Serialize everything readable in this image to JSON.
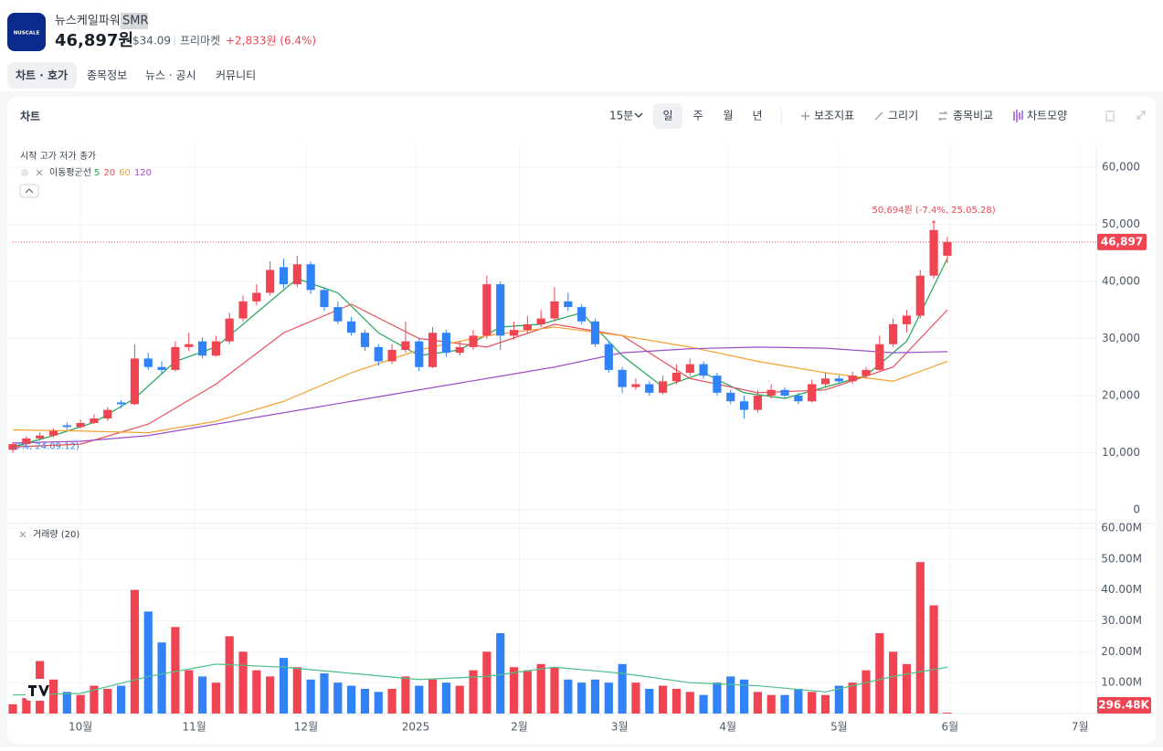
{
  "header": {
    "logo": "NUSCALE",
    "company": "뉴스케일파워",
    "ticker": "SMR",
    "price": "46,897원",
    "usd": "$34.09",
    "session": "프리마켓",
    "change": "+2,833원 (6.4%)"
  },
  "tabs": [
    "차트 · 호가",
    "종목정보",
    "뉴스 · 공시",
    "커뮤니티"
  ],
  "toolbar": {
    "title": "차트",
    "interval": "15분",
    "periods": [
      "일",
      "주",
      "월",
      "년"
    ],
    "tools": [
      "보조지표",
      "그리기",
      "종목비교",
      "차트모양"
    ]
  },
  "chart_data": {
    "type": "candlestick",
    "ohlc_legend": "시작 고가 저가 종가",
    "ma_label": "이동평균선",
    "up_color": "#f04452",
    "down_color": "#3182f6",
    "x": [
      0,
      1,
      2,
      3,
      4,
      5,
      6,
      7,
      8,
      9,
      10,
      11,
      12,
      13,
      14,
      15,
      16,
      17,
      18,
      19,
      20,
      21,
      22,
      23,
      24,
      25,
      26,
      27,
      28,
      29,
      30,
      31,
      32,
      33,
      34,
      35,
      36,
      37,
      38,
      39,
      40,
      41,
      42,
      43,
      44,
      45,
      46,
      47,
      48,
      49,
      50,
      51,
      52,
      53,
      54,
      55,
      56,
      57,
      58,
      59,
      60,
      61,
      62,
      63,
      64,
      65,
      66,
      67,
      68,
      69
    ],
    "xlim": [
      0,
      80
    ],
    "xticks": [
      {
        "value": 5,
        "label": "10월"
      },
      {
        "value": 13.4,
        "label": "11월"
      },
      {
        "value": 21.65,
        "label": "12월"
      },
      {
        "value": 29.75,
        "label": "2025"
      },
      {
        "value": 37.4,
        "label": "2월"
      },
      {
        "value": 44.8,
        "label": "3월"
      },
      {
        "value": 52.8,
        "label": "4월"
      },
      {
        "value": 61,
        "label": "5월"
      },
      {
        "value": 69.2,
        "label": "6월"
      },
      {
        "value": 78.8,
        "label": "7월"
      }
    ],
    "open": [
      10500,
      11500,
      12500,
      13000,
      14800,
      14500,
      15200,
      16000,
      18800,
      18500,
      26500,
      25000,
      24500,
      28500,
      29500,
      27000,
      29500,
      33500,
      36500,
      38000,
      42500,
      39500,
      43000,
      38500,
      35500,
      33000,
      31000,
      28500,
      26000,
      28000,
      29500,
      25000,
      31000,
      27500,
      28500,
      30500,
      39500,
      30500,
      31500,
      32500,
      33500,
      36500,
      35500,
      33000,
      29000,
      24500,
      21500,
      22000,
      20500,
      22500,
      24000,
      25500,
      23500,
      20500,
      19000,
      17500,
      20000,
      21000,
      20000,
      19000,
      22000,
      23000,
      22500,
      23500,
      24500,
      29000,
      32500,
      34000,
      41000,
      44500
    ],
    "high": [
      11900,
      12900,
      13600,
      14300,
      15300,
      15800,
      16700,
      18000,
      19200,
      29000,
      27500,
      26000,
      29500,
      31000,
      30200,
      30500,
      34500,
      37500,
      39500,
      43500,
      44000,
      44500,
      43500,
      39000,
      36500,
      33800,
      31500,
      29000,
      29000,
      33000,
      30000,
      32000,
      31500,
      29500,
      31500,
      41000,
      40000,
      33000,
      34000,
      35000,
      39000,
      38000,
      36000,
      33500,
      29500,
      25000,
      23000,
      22500,
      23500,
      25500,
      26500,
      26000,
      24000,
      21000,
      20000,
      21000,
      22000,
      21500,
      20500,
      22800,
      24000,
      23500,
      24200,
      25000,
      30500,
      33500,
      35000,
      42000,
      50694,
      47800
    ],
    "low": [
      10000,
      11200,
      12100,
      12700,
      14000,
      14200,
      15000,
      15600,
      17800,
      18300,
      24500,
      23800,
      24200,
      27800,
      26500,
      26800,
      29000,
      33000,
      35800,
      37500,
      38800,
      39000,
      37800,
      34800,
      32500,
      30500,
      27800,
      25200,
      25500,
      27500,
      24300,
      24800,
      26800,
      27000,
      28000,
      30000,
      28000,
      29800,
      31000,
      32000,
      33000,
      34800,
      32500,
      28500,
      24000,
      20500,
      21000,
      20000,
      20200,
      22000,
      23500,
      23000,
      20000,
      18500,
      16000,
      17000,
      19500,
      19500,
      18500,
      18800,
      21500,
      22000,
      22000,
      23000,
      24200,
      28500,
      31000,
      33500,
      40500,
      43200
    ],
    "close": [
      11500,
      12500,
      13000,
      13800,
      14500,
      15200,
      16000,
      17500,
      18500,
      26500,
      25000,
      24500,
      28500,
      29000,
      27000,
      29500,
      33500,
      36500,
      38000,
      42000,
      39500,
      43000,
      38500,
      35500,
      33000,
      31000,
      28500,
      26000,
      28000,
      29500,
      25000,
      31000,
      27500,
      28500,
      30500,
      39500,
      30500,
      31500,
      32500,
      33500,
      36500,
      35500,
      33000,
      29000,
      24500,
      21500,
      22000,
      20500,
      22500,
      24000,
      25500,
      23500,
      20500,
      19000,
      17500,
      20000,
      21000,
      20000,
      19000,
      22000,
      23000,
      22500,
      23500,
      24500,
      29000,
      32500,
      34000,
      41000,
      49000,
      46897
    ],
    "ylim": [
      -2400,
      64000
    ],
    "yticks": [
      0,
      {
        "value": 10000,
        "label": "10,000"
      },
      {
        "value": 20000,
        "label": "20,000"
      },
      {
        "value": 30000,
        "label": "30,000"
      },
      {
        "value": 40000,
        "label": "40,000"
      },
      {
        "value": 50000,
        "label": "50,000"
      },
      {
        "value": 60000,
        "label": "60,000"
      }
    ],
    "grid": true,
    "last_price": {
      "value": 46897,
      "label": "46,897"
    },
    "annotations": [
      {
        "text": "50,694원 (-7.4%, 25.05.28)",
        "x": 68,
        "value": 50694,
        "color": "#f04452"
      },
      {
        "text": ".0%, 24.09.12)",
        "x": 0,
        "value": 10000,
        "color": "#3182f6"
      }
    ],
    "moving_averages": [
      {
        "name": "5",
        "color": "#22a658",
        "x": [
          0,
          3,
          6,
          9,
          12,
          15,
          18,
          21,
          24,
          27,
          30,
          33,
          36,
          39,
          42,
          45,
          48,
          51,
          54,
          57,
          60,
          63,
          66,
          69
        ],
        "values": [
          11000,
          13000,
          15300,
          19500,
          26000,
          28500,
          34500,
          40500,
          38000,
          31000,
          27000,
          28000,
          32000,
          32500,
          34500,
          27000,
          21500,
          24000,
          20500,
          19500,
          21500,
          23500,
          29500,
          44000
        ]
      },
      {
        "name": "20",
        "color": "#e8505b",
        "x": [
          0,
          5,
          10,
          15,
          20,
          25,
          30,
          35,
          40,
          45,
          50,
          55,
          60,
          65,
          69
        ],
        "values": [
          11000,
          11500,
          15000,
          22000,
          31000,
          36000,
          30000,
          28500,
          32500,
          30500,
          23000,
          20500,
          21000,
          25000,
          35000
        ]
      },
      {
        "name": "60",
        "color": "#f5a030",
        "x": [
          0,
          5,
          10,
          15,
          20,
          25,
          30,
          35,
          40,
          45,
          50,
          55,
          60,
          65,
          69
        ],
        "values": [
          14000,
          13800,
          13500,
          15500,
          19000,
          24000,
          28000,
          30500,
          32000,
          30500,
          28500,
          26000,
          24000,
          22500,
          26000
        ]
      },
      {
        "name": "120",
        "color": "#9b4dca",
        "x": [
          0,
          5,
          10,
          15,
          20,
          25,
          30,
          35,
          40,
          45,
          50,
          55,
          60,
          65,
          69
        ],
        "values": [
          11700,
          12000,
          13000,
          15000,
          17000,
          19000,
          21000,
          23000,
          25000,
          27500,
          28200,
          28500,
          28300,
          27500,
          27700
        ]
      }
    ],
    "volume": {
      "label": "거래량 (20)",
      "values": [
        3000000,
        5000000,
        17000000,
        11000000,
        7000000,
        6000000,
        9000000,
        8000000,
        9000000,
        40000000,
        33000000,
        23000000,
        28000000,
        14000000,
        12000000,
        10000000,
        25000000,
        20000000,
        14000000,
        12000000,
        18000000,
        15000000,
        11000000,
        13000000,
        10000000,
        9000000,
        8000000,
        7000000,
        8000000,
        12000000,
        9000000,
        11000000,
        10000000,
        9000000,
        14000000,
        20000000,
        26000000,
        15000000,
        14000000,
        16000000,
        15000000,
        11000000,
        10000000,
        11000000,
        10000000,
        16000000,
        10000000,
        8000000,
        9000000,
        8000000,
        7000000,
        6000000,
        10000000,
        12000000,
        11000000,
        7000000,
        6000000,
        6000000,
        8000000,
        7000000,
        6000000,
        9000000,
        10000000,
        14000000,
        26000000,
        20000000,
        16000000,
        49000000,
        35000000,
        296480
      ],
      "ylim": [
        0,
        60000000
      ],
      "yticks": [
        {
          "value": 10000000,
          "label": "10.00M"
        },
        {
          "value": 20000000,
          "label": "20.00M"
        },
        {
          "value": 30000000,
          "label": "30.00M"
        },
        {
          "value": 40000000,
          "label": "40.00M"
        },
        {
          "value": 50000000,
          "label": "50.00M"
        },
        {
          "value": 60000000,
          "label": "60.00M"
        }
      ],
      "last": {
        "value": 296480,
        "label": "296.48K"
      },
      "ma": {
        "color": "#4cbf8a",
        "x": [
          0,
          5,
          10,
          15,
          20,
          25,
          30,
          35,
          40,
          45,
          50,
          55,
          60,
          65,
          69
        ],
        "values": [
          6000000,
          6500000,
          12000000,
          16000000,
          15000000,
          13000000,
          11000000,
          12000000,
          15000000,
          13000000,
          10000000,
          9000000,
          7000000,
          12000000,
          15000000
        ]
      }
    }
  }
}
